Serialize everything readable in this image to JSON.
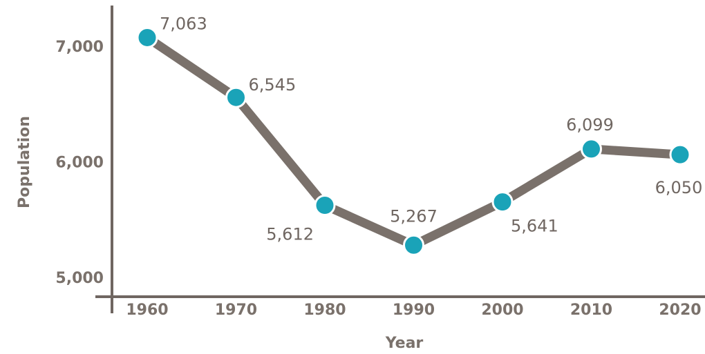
{
  "chart_data": {
    "type": "line",
    "title": "",
    "xlabel": "Year",
    "ylabel": "Population",
    "categories": [
      "1960",
      "1970",
      "1980",
      "1990",
      "2000",
      "2010",
      "2020"
    ],
    "series": [
      {
        "values": [
          7063,
          6545,
          5612,
          5267,
          5641,
          6099,
          6050
        ],
        "data_labels": [
          "7,063",
          "6,545",
          "5,612",
          "5,267",
          "5,641",
          "6,099",
          "6,050"
        ]
      }
    ],
    "y_ticks": [
      {
        "value": 7000,
        "label": "7,000"
      },
      {
        "value": 6000,
        "label": "6,000"
      },
      {
        "value": 5000,
        "label": "5,000"
      }
    ],
    "grid": false,
    "legend": "none"
  },
  "colors": {
    "line": "#7a716b",
    "marker": "#1aa3b8",
    "axis": "#6f6661"
  }
}
